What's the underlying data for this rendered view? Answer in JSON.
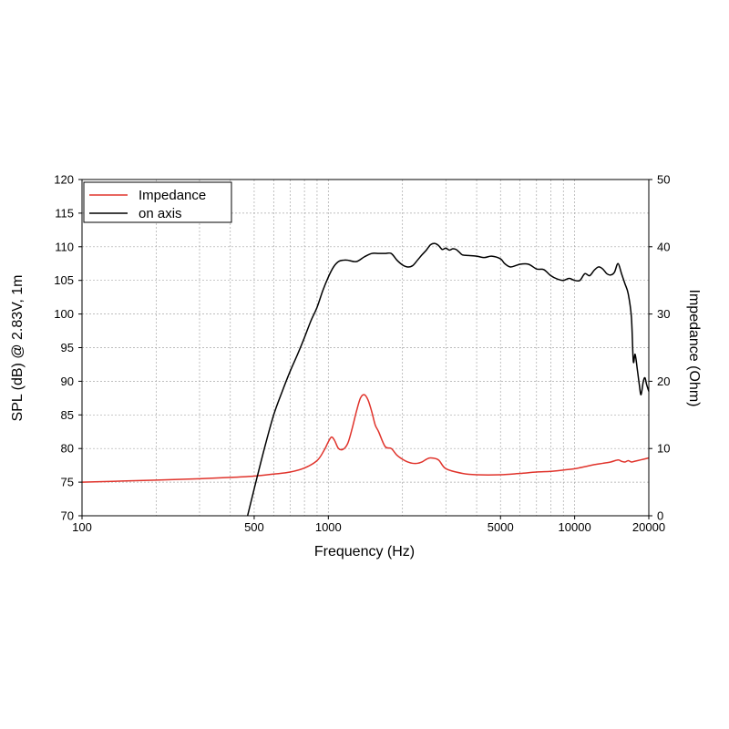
{
  "chart_data": {
    "type": "line",
    "title": "",
    "xlabel": "Frequency (Hz)",
    "ylabel": "SPL (dB) @ 2.83V, 1m",
    "y2label": "Impedance (Ohm)",
    "x_scale": "log",
    "xlim": [
      100,
      20000
    ],
    "ylim": [
      70,
      120
    ],
    "y2lim": [
      0,
      50
    ],
    "grid": true,
    "legend_position": "top-left",
    "x_ticks": [
      {
        "value": 100,
        "label": "100"
      },
      {
        "value": 500,
        "label": "500"
      },
      {
        "value": 1000,
        "label": "1000"
      },
      {
        "value": 5000,
        "label": "5000"
      },
      {
        "value": 10000,
        "label": "10000"
      },
      {
        "value": 20000,
        "label": "20000"
      }
    ],
    "y_ticks": [
      {
        "value": 70,
        "label": "70"
      },
      {
        "value": 75,
        "label": "75"
      },
      {
        "value": 80,
        "label": "80"
      },
      {
        "value": 85,
        "label": "85"
      },
      {
        "value": 90,
        "label": "90"
      },
      {
        "value": 95,
        "label": "95"
      },
      {
        "value": 100,
        "label": "100"
      },
      {
        "value": 105,
        "label": "105"
      },
      {
        "value": 110,
        "label": "110"
      },
      {
        "value": 115,
        "label": "115"
      },
      {
        "value": 120,
        "label": "120"
      }
    ],
    "y2_ticks": [
      {
        "value": 0,
        "label": "0"
      },
      {
        "value": 10,
        "label": "10"
      },
      {
        "value": 20,
        "label": "20"
      },
      {
        "value": 30,
        "label": "30"
      },
      {
        "value": 40,
        "label": "40"
      },
      {
        "value": 50,
        "label": "50"
      }
    ],
    "series": [
      {
        "name": "Impedance",
        "axis": "right",
        "color": "#e0332b",
        "x": [
          100,
          200,
          300,
          400,
          500,
          600,
          700,
          800,
          900,
          960,
          1000,
          1030,
          1060,
          1100,
          1150,
          1200,
          1250,
          1300,
          1350,
          1400,
          1450,
          1500,
          1550,
          1600,
          1700,
          1800,
          1900,
          2000,
          2100,
          2200,
          2300,
          2400,
          2500,
          2600,
          2800,
          3000,
          3500,
          4000,
          5000,
          6000,
          7000,
          8000,
          9000,
          10000,
          11000,
          12000,
          13000,
          14000,
          15000,
          15500,
          16000,
          16500,
          17000,
          17500,
          18000,
          19000,
          20000
        ],
        "values": [
          5.0,
          5.3,
          5.5,
          5.7,
          5.9,
          6.2,
          6.5,
          7.1,
          8.2,
          9.7,
          11.0,
          11.7,
          11.2,
          10.0,
          9.9,
          10.8,
          13.0,
          15.5,
          17.5,
          18.0,
          17.2,
          15.5,
          13.5,
          12.5,
          10.3,
          10.0,
          9.0,
          8.4,
          8.0,
          7.8,
          7.8,
          8.0,
          8.4,
          8.6,
          8.3,
          7.0,
          6.3,
          6.1,
          6.1,
          6.3,
          6.5,
          6.6,
          6.8,
          7.0,
          7.3,
          7.6,
          7.8,
          8.0,
          8.3,
          8.1,
          8.0,
          8.2,
          8.0,
          8.1,
          8.2,
          8.4,
          8.6
        ]
      },
      {
        "name": "on axis",
        "axis": "left",
        "color": "#000000",
        "x": [
          470,
          500,
          550,
          600,
          650,
          700,
          750,
          800,
          850,
          900,
          950,
          1000,
          1050,
          1100,
          1150,
          1200,
          1300,
          1400,
          1500,
          1600,
          1700,
          1800,
          1900,
          2000,
          2100,
          2200,
          2300,
          2400,
          2500,
          2600,
          2700,
          2800,
          2900,
          3000,
          3100,
          3200,
          3300,
          3400,
          3500,
          3700,
          4000,
          4300,
          4600,
          5000,
          5200,
          5500,
          6000,
          6500,
          7000,
          7500,
          8000,
          8500,
          9000,
          9500,
          10000,
          10500,
          11000,
          11500,
          12000,
          12500,
          13000,
          13500,
          14000,
          14500,
          15000,
          15500,
          16000,
          16500,
          17000,
          17300,
          17600,
          18000,
          18300,
          18600,
          19000,
          19300,
          19600,
          20000
        ],
        "values": [
          70.0,
          74.0,
          80.0,
          85.0,
          88.5,
          91.5,
          94.0,
          96.5,
          99.0,
          101.0,
          103.5,
          105.5,
          107.0,
          107.8,
          108.0,
          108.0,
          107.8,
          108.5,
          109.0,
          109.0,
          109.0,
          109.0,
          108.0,
          107.3,
          107.0,
          107.2,
          108.0,
          108.8,
          109.5,
          110.3,
          110.5,
          110.2,
          109.6,
          109.8,
          109.5,
          109.7,
          109.6,
          109.2,
          108.8,
          108.7,
          108.6,
          108.4,
          108.6,
          108.2,
          107.5,
          107.0,
          107.4,
          107.4,
          106.7,
          106.6,
          105.7,
          105.2,
          105.0,
          105.3,
          105.0,
          105.0,
          106.0,
          105.7,
          106.5,
          107.0,
          106.7,
          106.0,
          105.8,
          106.2,
          107.5,
          106.0,
          104.5,
          103.0,
          99.5,
          93.0,
          94.0,
          91.5,
          89.5,
          88.0,
          90.0,
          90.5,
          89.5,
          88.5
        ]
      }
    ]
  }
}
